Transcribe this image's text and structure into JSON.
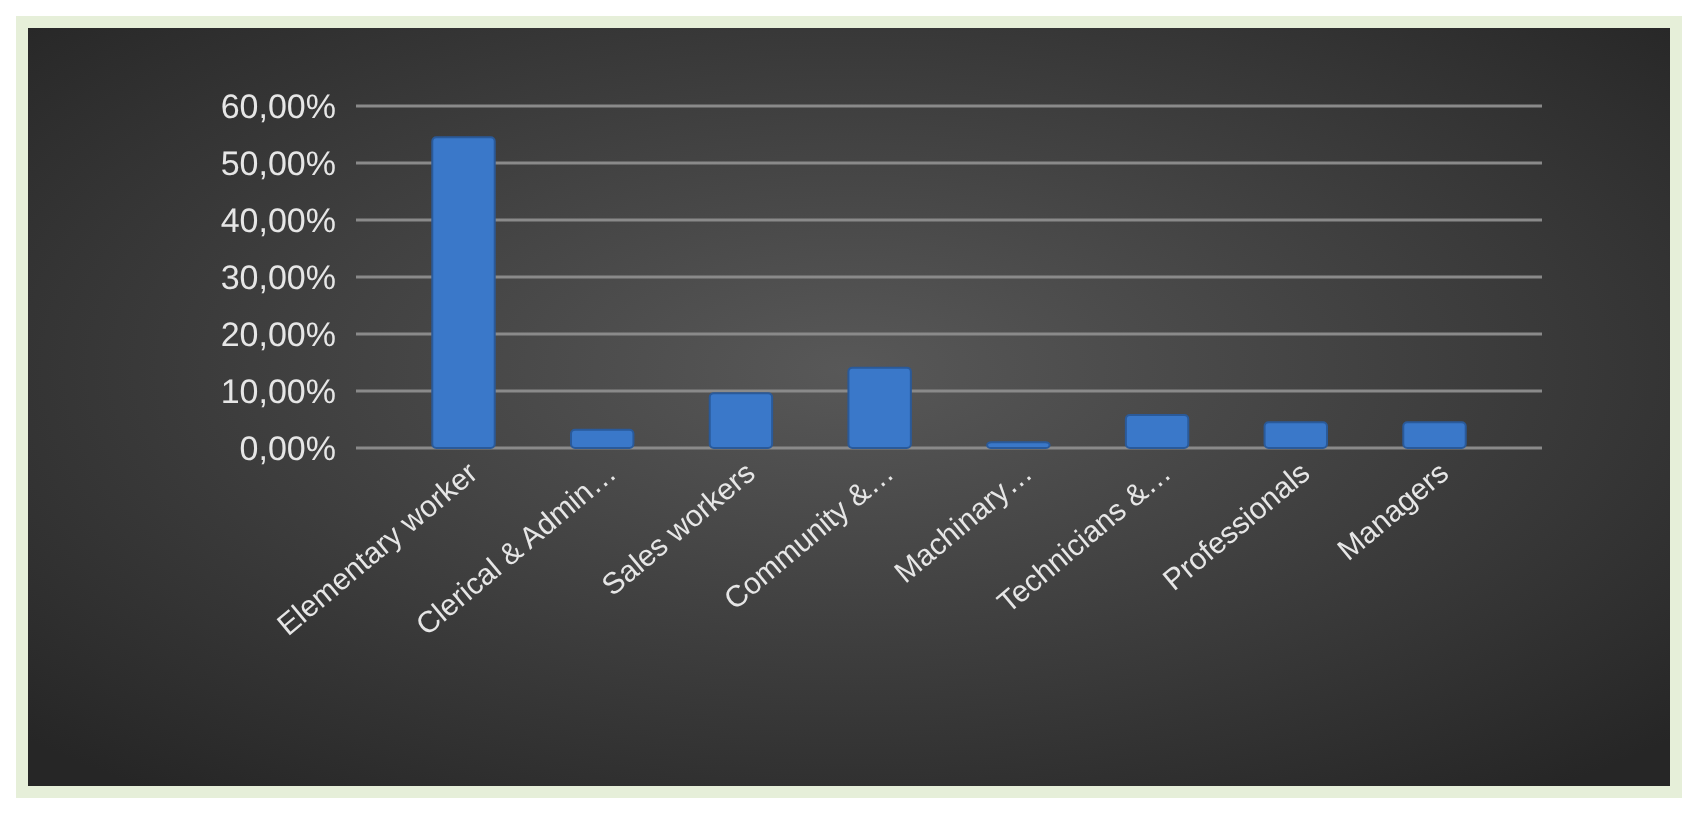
{
  "chart_data": {
    "type": "bar",
    "categories": [
      "Elementary worker",
      "Clerical & Admin…",
      "Sales workers",
      "Community &…",
      "Machinary…",
      "Technicians &…",
      "Professionals",
      "Managers"
    ],
    "values": [
      0.545,
      0.032,
      0.096,
      0.141,
      0.01,
      0.058,
      0.045,
      0.045
    ],
    "color": "#3a78c9",
    "ylim": [
      0,
      0.6
    ],
    "yticks": [
      {
        "value": 0,
        "label": "0,00%"
      },
      {
        "value": 0.1,
        "label": "10,00%"
      },
      {
        "value": 0.2,
        "label": "20,00%"
      },
      {
        "value": 0.3,
        "label": "30,00%"
      },
      {
        "value": 0.4,
        "label": "40,00%"
      },
      {
        "value": 0.5,
        "label": "50,00%"
      },
      {
        "value": 0.6,
        "label": "60,00%"
      }
    ],
    "grid": "y"
  }
}
